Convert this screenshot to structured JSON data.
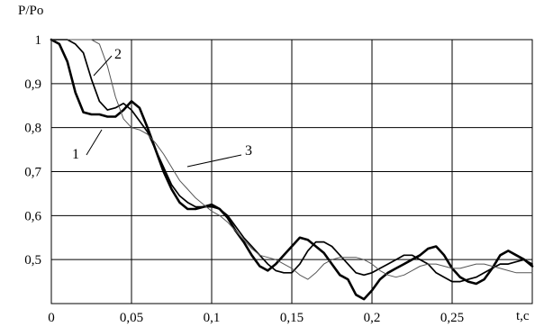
{
  "chart_data": {
    "type": "line",
    "ylabel": "P/Po",
    "xlabel": "t,c",
    "xlim": [
      0,
      0.3
    ],
    "ylim": [
      0.4,
      1.0
    ],
    "grid": true,
    "x_ticks": [
      {
        "value": 0,
        "label": "0"
      },
      {
        "value": 0.05,
        "label": "0,05"
      },
      {
        "value": 0.1,
        "label": "0,1"
      },
      {
        "value": 0.15,
        "label": "0,15"
      },
      {
        "value": 0.2,
        "label": "0,2"
      },
      {
        "value": 0.25,
        "label": "0,25"
      }
    ],
    "y_ticks": [
      {
        "value": 1.0,
        "label": "1"
      },
      {
        "value": 0.9,
        "label": "0,9"
      },
      {
        "value": 0.8,
        "label": "0,8"
      },
      {
        "value": 0.7,
        "label": "0,7"
      },
      {
        "value": 0.6,
        "label": "0,6"
      },
      {
        "value": 0.5,
        "label": "0,5"
      }
    ],
    "series": [
      {
        "name": "1",
        "color": "#000000",
        "weight": "thick",
        "x": [
          0,
          0.005,
          0.01,
          0.015,
          0.02,
          0.025,
          0.03,
          0.035,
          0.04,
          0.045,
          0.05,
          0.055,
          0.06,
          0.065,
          0.07,
          0.075,
          0.08,
          0.085,
          0.09,
          0.095,
          0.1,
          0.105,
          0.11,
          0.115,
          0.12,
          0.125,
          0.13,
          0.135,
          0.14,
          0.145,
          0.15,
          0.155,
          0.16,
          0.165,
          0.17,
          0.175,
          0.18,
          0.185,
          0.19,
          0.195,
          0.2,
          0.205,
          0.21,
          0.215,
          0.22,
          0.225,
          0.23,
          0.235,
          0.24,
          0.245,
          0.25,
          0.255,
          0.26,
          0.265,
          0.27,
          0.275,
          0.28,
          0.285,
          0.29,
          0.295,
          0.3
        ],
        "y": [
          1.0,
          0.99,
          0.95,
          0.88,
          0.835,
          0.83,
          0.83,
          0.825,
          0.825,
          0.84,
          0.86,
          0.845,
          0.8,
          0.75,
          0.7,
          0.66,
          0.63,
          0.615,
          0.615,
          0.62,
          0.625,
          0.615,
          0.595,
          0.565,
          0.54,
          0.51,
          0.485,
          0.475,
          0.49,
          0.51,
          0.53,
          0.55,
          0.545,
          0.53,
          0.515,
          0.49,
          0.465,
          0.455,
          0.42,
          0.41,
          0.43,
          0.455,
          0.47,
          0.48,
          0.49,
          0.5,
          0.51,
          0.525,
          0.53,
          0.51,
          0.48,
          0.46,
          0.45,
          0.445,
          0.455,
          0.48,
          0.51,
          0.52,
          0.51,
          0.5,
          0.485
        ]
      },
      {
        "name": "2",
        "color": "#000000",
        "weight": "medium",
        "x": [
          0,
          0.005,
          0.01,
          0.015,
          0.02,
          0.025,
          0.03,
          0.035,
          0.04,
          0.045,
          0.05,
          0.055,
          0.06,
          0.065,
          0.07,
          0.075,
          0.08,
          0.085,
          0.09,
          0.095,
          0.1,
          0.105,
          0.11,
          0.115,
          0.12,
          0.125,
          0.13,
          0.135,
          0.14,
          0.145,
          0.15,
          0.155,
          0.16,
          0.165,
          0.17,
          0.175,
          0.18,
          0.185,
          0.19,
          0.195,
          0.2,
          0.205,
          0.21,
          0.215,
          0.22,
          0.225,
          0.23,
          0.235,
          0.24,
          0.245,
          0.25,
          0.255,
          0.26,
          0.265,
          0.27,
          0.275,
          0.28,
          0.285,
          0.29,
          0.295,
          0.3
        ],
        "y": [
          1.0,
          1.0,
          1.0,
          0.99,
          0.97,
          0.91,
          0.86,
          0.84,
          0.845,
          0.855,
          0.84,
          0.815,
          0.79,
          0.75,
          0.71,
          0.67,
          0.645,
          0.63,
          0.62,
          0.62,
          0.62,
          0.615,
          0.6,
          0.575,
          0.55,
          0.53,
          0.51,
          0.49,
          0.475,
          0.47,
          0.47,
          0.49,
          0.52,
          0.54,
          0.54,
          0.53,
          0.51,
          0.49,
          0.47,
          0.465,
          0.47,
          0.48,
          0.49,
          0.5,
          0.51,
          0.51,
          0.5,
          0.49,
          0.47,
          0.46,
          0.45,
          0.45,
          0.455,
          0.46,
          0.47,
          0.48,
          0.49,
          0.49,
          0.495,
          0.5,
          0.49
        ]
      },
      {
        "name": "3",
        "color": "#555555",
        "weight": "thin",
        "x": [
          0,
          0.005,
          0.01,
          0.015,
          0.02,
          0.025,
          0.03,
          0.035,
          0.04,
          0.045,
          0.05,
          0.055,
          0.06,
          0.065,
          0.07,
          0.075,
          0.08,
          0.085,
          0.09,
          0.095,
          0.1,
          0.105,
          0.11,
          0.115,
          0.12,
          0.125,
          0.13,
          0.135,
          0.14,
          0.145,
          0.15,
          0.155,
          0.16,
          0.165,
          0.17,
          0.175,
          0.18,
          0.185,
          0.19,
          0.195,
          0.2,
          0.205,
          0.21,
          0.215,
          0.22,
          0.225,
          0.23,
          0.235,
          0.24,
          0.245,
          0.25,
          0.255,
          0.26,
          0.265,
          0.27,
          0.275,
          0.28,
          0.285,
          0.29,
          0.295,
          0.3
        ],
        "y": [
          1.0,
          1.0,
          1.0,
          1.0,
          1.0,
          1.0,
          0.99,
          0.94,
          0.87,
          0.82,
          0.8,
          0.795,
          0.785,
          0.765,
          0.74,
          0.71,
          0.68,
          0.66,
          0.64,
          0.625,
          0.61,
          0.6,
          0.585,
          0.565,
          0.545,
          0.525,
          0.51,
          0.505,
          0.5,
          0.49,
          0.48,
          0.465,
          0.455,
          0.47,
          0.49,
          0.5,
          0.505,
          0.505,
          0.505,
          0.5,
          0.49,
          0.475,
          0.465,
          0.46,
          0.465,
          0.475,
          0.485,
          0.49,
          0.49,
          0.485,
          0.48,
          0.48,
          0.485,
          0.49,
          0.49,
          0.485,
          0.48,
          0.475,
          0.47,
          0.47,
          0.47
        ]
      }
    ],
    "annotations": [
      {
        "text": "1",
        "series": "1",
        "x": 0.032,
        "y": 0.83
      },
      {
        "text": "2",
        "series": "2",
        "x": 0.027,
        "y": 0.9
      },
      {
        "text": "3",
        "series": "3",
        "x": 0.085,
        "y": 0.7
      }
    ]
  }
}
